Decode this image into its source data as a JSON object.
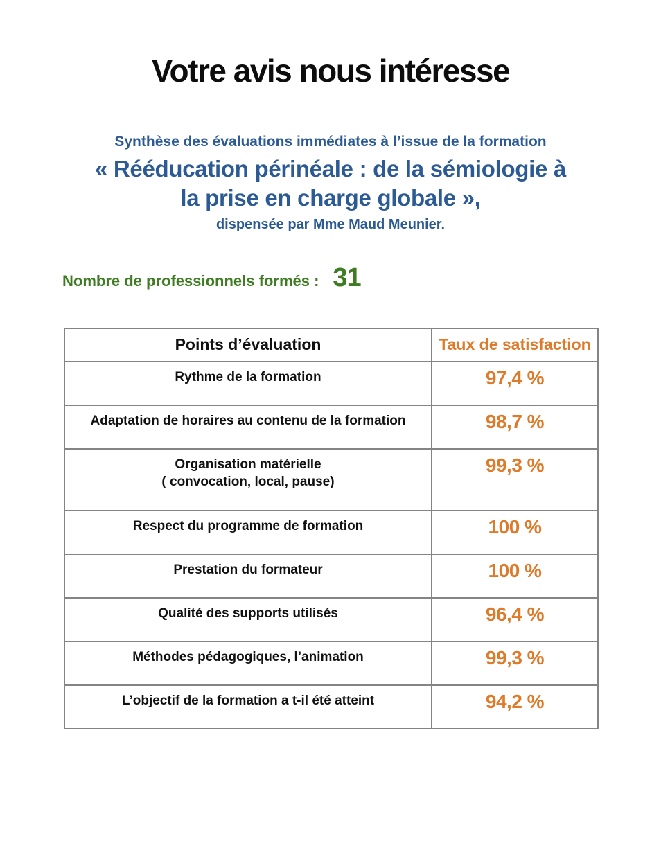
{
  "page": {
    "title": "Votre avis nous intéresse"
  },
  "subtitle": {
    "line1": "Synthèse des évaluations immédiates à l’issue de la formation",
    "course_title": "« Rééducation périnéale : de la sémiologie à\nla prise en charge globale »,",
    "line3": "dispensée par Mme Maud Meunier."
  },
  "trained_count": {
    "label": "Nombre de professionnels formés :",
    "value": "31"
  },
  "table": {
    "headers": {
      "points": "Points d’évaluation",
      "satisfaction": "Taux de satisfaction"
    },
    "rows": [
      {
        "label": "Rythme de la formation",
        "value": "97,4 %"
      },
      {
        "label": "Adaptation de horaires au contenu de la formation",
        "value": "98,7 %"
      },
      {
        "label": "Organisation matérielle\n( convocation, local, pause)",
        "value": "99,3 %"
      },
      {
        "label": "Respect du programme de formation",
        "value": "100 %"
      },
      {
        "label": "Prestation du formateur",
        "value": "100 %"
      },
      {
        "label": "Qualité des supports utilisés",
        "value": "96,4 %"
      },
      {
        "label": "Méthodes pédagogiques, l’animation",
        "value": "99,3 %"
      },
      {
        "label": "L’objectif de la formation a t-il été atteint",
        "value": "94,2 %"
      }
    ]
  },
  "colors": {
    "blue": "#2B5A94",
    "green": "#3E7B22",
    "orange": "#DD7B2B",
    "border": "#848484"
  }
}
